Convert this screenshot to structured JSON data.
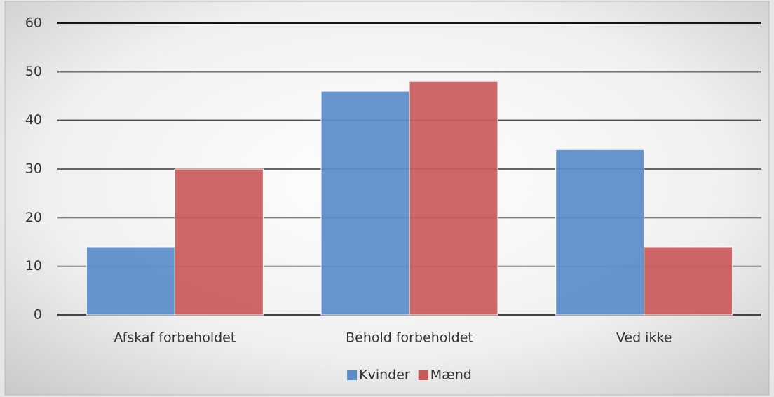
{
  "chart_data": {
    "type": "bar",
    "categories": [
      "Afskaf forbeholdet",
      "Behold forbeholdet",
      "Ved ikke"
    ],
    "series": [
      {
        "name": "Kvinder",
        "color": "#5b8cc8",
        "values": [
          14,
          46,
          34
        ]
      },
      {
        "name": "Mænd",
        "color": "#c95a5a",
        "values": [
          30,
          48,
          14
        ]
      }
    ],
    "ylim": [
      0,
      60
    ],
    "yticks": [
      0,
      10,
      20,
      30,
      40,
      50,
      60
    ],
    "grid": true,
    "legend": "bottom"
  }
}
